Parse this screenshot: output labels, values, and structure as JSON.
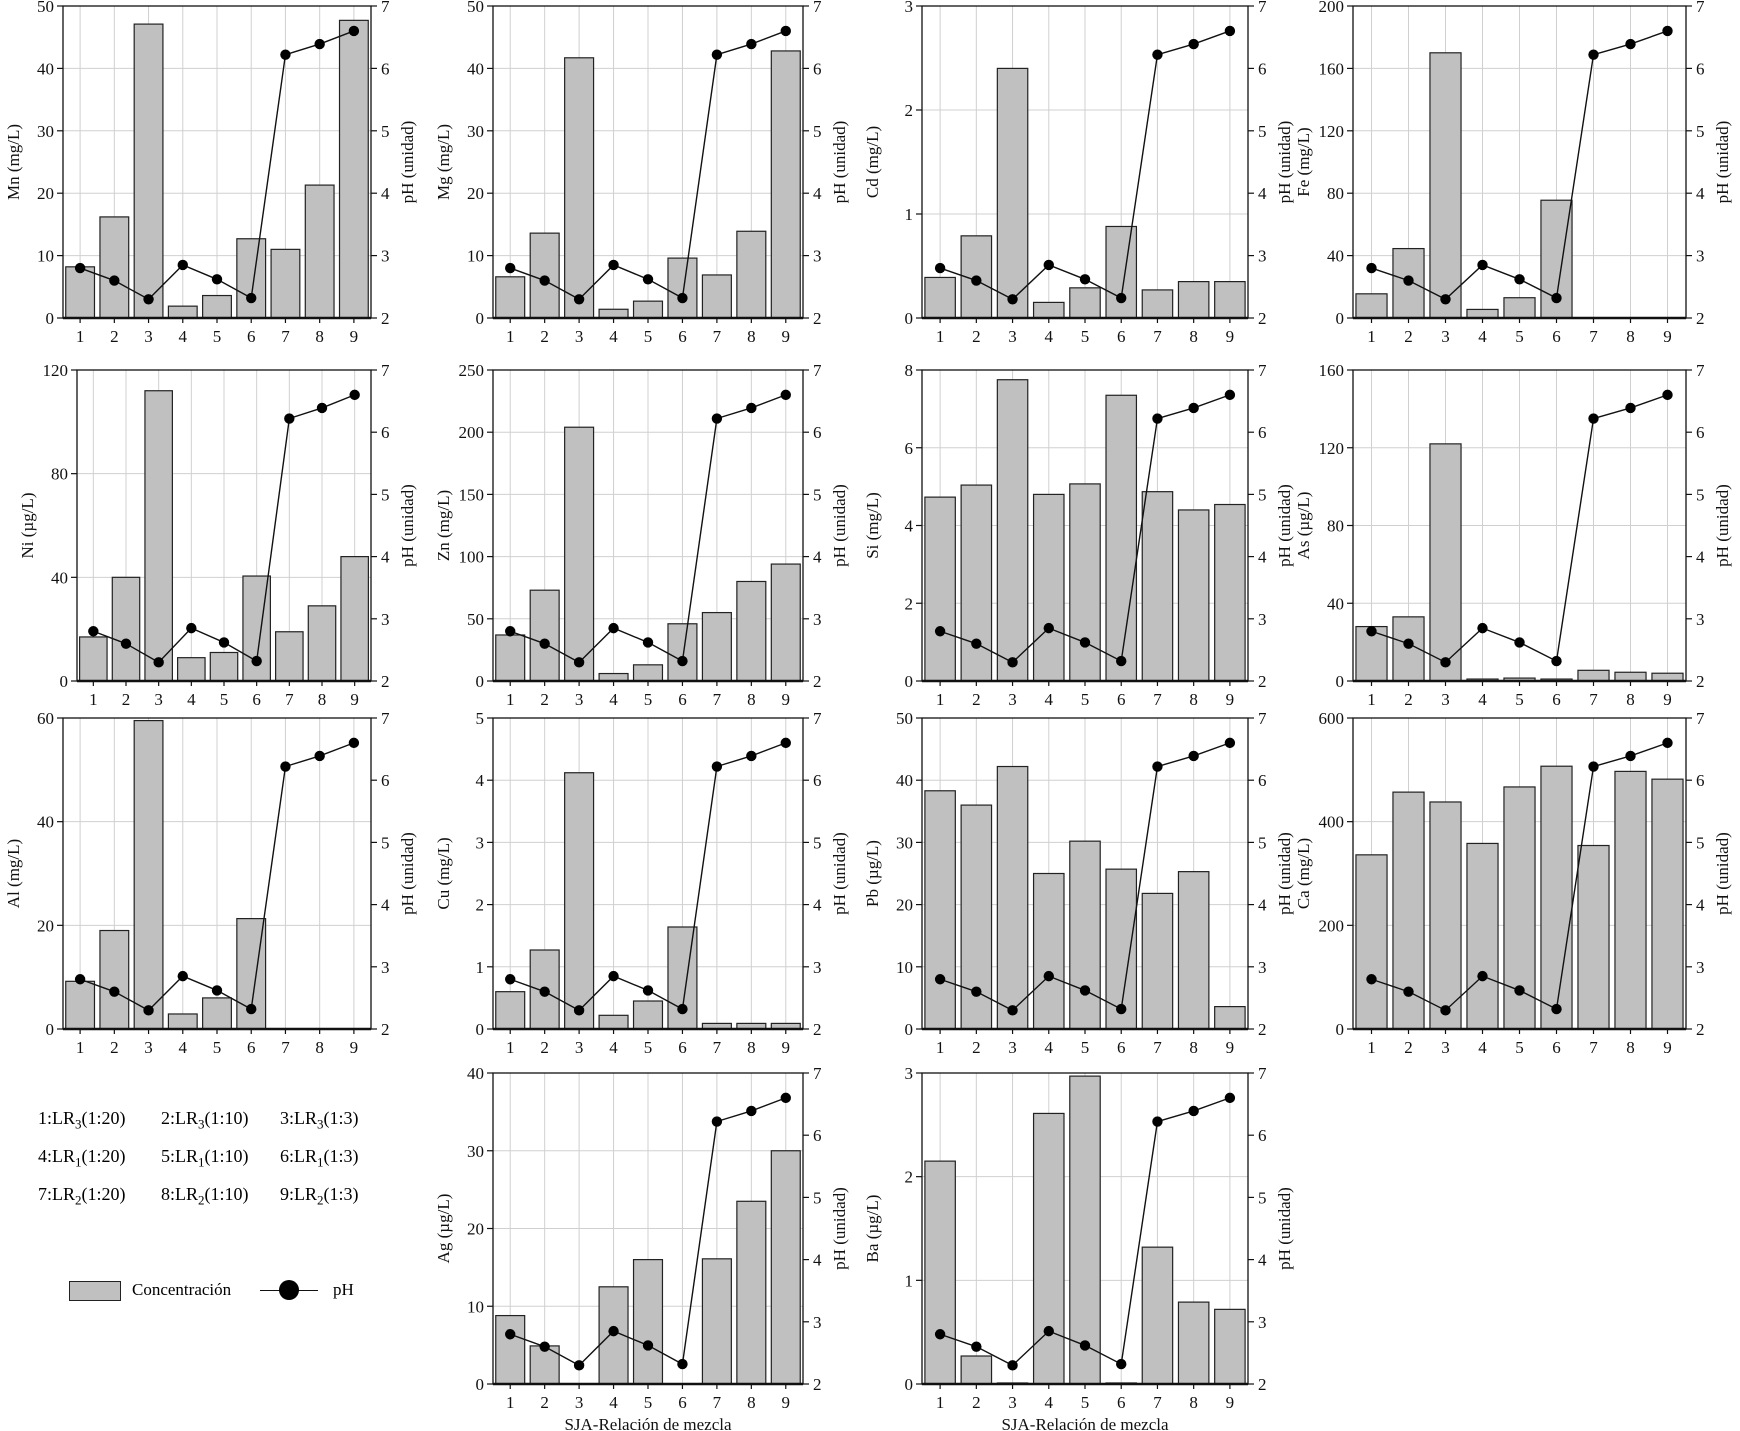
{
  "figure": {
    "xlabel": "SJA-Relación de mezcla",
    "ph_axis_label": "pH (unidad)",
    "ph_range": [
      2,
      7
    ],
    "ph_ticks": [
      2,
      3,
      4,
      5,
      6,
      7
    ]
  },
  "legend": {
    "concentration_label": "Concentración",
    "ph_label": "pH",
    "bar_color": "#c0c0c0",
    "mixtures": [
      {
        "num": "1",
        "base": "LR",
        "sub": "3",
        "ratio": "(1:20)"
      },
      {
        "num": "2",
        "base": "LR",
        "sub": "3",
        "ratio": "(1:10)"
      },
      {
        "num": "3",
        "base": "LR",
        "sub": "3",
        "ratio": "(1:3)"
      },
      {
        "num": "4",
        "base": "LR",
        "sub": "1",
        "ratio": "(1:20)"
      },
      {
        "num": "5",
        "base": "LR",
        "sub": "1",
        "ratio": "(1:10)"
      },
      {
        "num": "6",
        "base": "LR",
        "sub": "1",
        "ratio": "(1:3)"
      },
      {
        "num": "7",
        "base": "LR",
        "sub": "2",
        "ratio": "(1:20)"
      },
      {
        "num": "8",
        "base": "LR",
        "sub": "2",
        "ratio": "(1:10)"
      },
      {
        "num": "9",
        "base": "LR",
        "sub": "2",
        "ratio": "(1:3)"
      }
    ]
  },
  "chart_data": [
    {
      "type": "bar",
      "title": "Mn",
      "ylabel": "Mn (mg/L)",
      "categories": [
        "1",
        "2",
        "3",
        "4",
        "5",
        "6",
        "7",
        "8",
        "9"
      ],
      "values": [
        8.2,
        16.2,
        47.1,
        1.9,
        3.6,
        12.7,
        11.0,
        21.3,
        47.7
      ],
      "ylim": [
        0,
        50
      ],
      "yticks": [
        0,
        10,
        20,
        30,
        40,
        50
      ],
      "ph": [
        2.8,
        2.6,
        2.3,
        2.85,
        2.62,
        2.32,
        6.22,
        6.39,
        6.6
      ],
      "show_xlabel": false
    },
    {
      "type": "bar",
      "title": "Mg",
      "ylabel": "Mg (mg/L)",
      "categories": [
        "1",
        "2",
        "3",
        "4",
        "5",
        "6",
        "7",
        "8",
        "9"
      ],
      "values": [
        6.6,
        13.6,
        41.7,
        1.4,
        2.7,
        9.6,
        6.9,
        13.9,
        42.8
      ],
      "ylim": [
        0,
        50
      ],
      "yticks": [
        0,
        10,
        20,
        30,
        40,
        50
      ],
      "ph": [
        2.8,
        2.6,
        2.3,
        2.85,
        2.62,
        2.32,
        6.22,
        6.39,
        6.6
      ],
      "show_xlabel": false
    },
    {
      "type": "bar",
      "title": "Cd",
      "ylabel": "Cd (mg/L)",
      "categories": [
        "1",
        "2",
        "3",
        "4",
        "5",
        "6",
        "7",
        "8",
        "9"
      ],
      "values": [
        0.39,
        0.79,
        2.4,
        0.15,
        0.29,
        0.88,
        0.27,
        0.35,
        0.35
      ],
      "ylim": [
        0,
        3
      ],
      "yticks": [
        0,
        1,
        2,
        3
      ],
      "ph": [
        2.8,
        2.6,
        2.3,
        2.85,
        2.62,
        2.32,
        6.22,
        6.39,
        6.6
      ],
      "show_xlabel": false
    },
    {
      "type": "bar",
      "title": "Fe",
      "ylabel": "Fe (mg/L)",
      "categories": [
        "1",
        "2",
        "3",
        "4",
        "5",
        "6",
        "7",
        "8",
        "9"
      ],
      "values": [
        15.5,
        44.5,
        170,
        5.5,
        13,
        75.5,
        0,
        0,
        0
      ],
      "ylim": [
        0,
        200
      ],
      "yticks": [
        0,
        40,
        80,
        120,
        160,
        200
      ],
      "ph": [
        2.8,
        2.6,
        2.3,
        2.85,
        2.62,
        2.32,
        6.22,
        6.39,
        6.6
      ],
      "show_xlabel": false
    },
    {
      "type": "bar",
      "title": "Ni",
      "ylabel": "Ni (µg/L)",
      "categories": [
        "1",
        "2",
        "3",
        "4",
        "5",
        "6",
        "7",
        "8",
        "9"
      ],
      "values": [
        17,
        40,
        112,
        9,
        11,
        40.5,
        19,
        29,
        48
      ],
      "ylim": [
        0,
        120
      ],
      "yticks": [
        0,
        40,
        80,
        120
      ],
      "ph": [
        2.8,
        2.6,
        2.3,
        2.85,
        2.62,
        2.32,
        6.22,
        6.39,
        6.6
      ],
      "show_xlabel": false
    },
    {
      "type": "bar",
      "title": "Zn",
      "ylabel": "Zn (mg/L)",
      "categories": [
        "1",
        "2",
        "3",
        "4",
        "5",
        "6",
        "7",
        "8",
        "9"
      ],
      "values": [
        37,
        73,
        204,
        6,
        13,
        46,
        55,
        80,
        94
      ],
      "ylim": [
        0,
        250
      ],
      "yticks": [
        0,
        50,
        100,
        150,
        200,
        250
      ],
      "ph": [
        2.8,
        2.6,
        2.3,
        2.85,
        2.62,
        2.32,
        6.22,
        6.39,
        6.6
      ],
      "show_xlabel": false
    },
    {
      "type": "bar",
      "title": "Si",
      "ylabel": "Si (mg/L)",
      "categories": [
        "1",
        "2",
        "3",
        "4",
        "5",
        "6",
        "7",
        "8",
        "9"
      ],
      "values": [
        4.73,
        5.04,
        7.75,
        4.8,
        5.07,
        7.35,
        4.87,
        4.4,
        4.54
      ],
      "ylim": [
        0,
        8
      ],
      "yticks": [
        0,
        2,
        4,
        6,
        8
      ],
      "ph": [
        2.8,
        2.6,
        2.3,
        2.85,
        2.62,
        2.32,
        6.22,
        6.39,
        6.6
      ],
      "show_xlabel": false
    },
    {
      "type": "bar",
      "title": "As",
      "ylabel": "As (µg/L)",
      "categories": [
        "1",
        "2",
        "3",
        "4",
        "5",
        "6",
        "7",
        "8",
        "9"
      ],
      "values": [
        28,
        33,
        122,
        1,
        1.5,
        1,
        5.5,
        4.5,
        4
      ],
      "ylim": [
        0,
        160
      ],
      "yticks": [
        0,
        40,
        80,
        120,
        160
      ],
      "ph": [
        2.8,
        2.6,
        2.3,
        2.85,
        2.62,
        2.32,
        6.22,
        6.39,
        6.6
      ],
      "show_xlabel": false
    },
    {
      "type": "bar",
      "title": "Al",
      "ylabel": "Al (mg/L)",
      "categories": [
        "1",
        "2",
        "3",
        "4",
        "5",
        "6",
        "7",
        "8",
        "9"
      ],
      "values": [
        9.2,
        19,
        59.5,
        2.9,
        6,
        21.3,
        0,
        0,
        0
      ],
      "ylim": [
        0,
        60
      ],
      "yticks": [
        0,
        20,
        40,
        60
      ],
      "ph": [
        2.8,
        2.6,
        2.3,
        2.85,
        2.62,
        2.32,
        6.22,
        6.39,
        6.6
      ],
      "show_xlabel": false
    },
    {
      "type": "bar",
      "title": "Cu",
      "ylabel": "Cu (mg/L)",
      "categories": [
        "1",
        "2",
        "3",
        "4",
        "5",
        "6",
        "7",
        "8",
        "9"
      ],
      "values": [
        0.6,
        1.27,
        4.12,
        0.22,
        0.45,
        1.64,
        0.09,
        0.09,
        0.09
      ],
      "ylim": [
        0,
        5
      ],
      "yticks": [
        0,
        1,
        2,
        3,
        4,
        5
      ],
      "ph": [
        2.8,
        2.6,
        2.3,
        2.85,
        2.62,
        2.32,
        6.22,
        6.39,
        6.6
      ],
      "show_xlabel": false
    },
    {
      "type": "bar",
      "title": "Pb",
      "ylabel": "Pb (µg/L)",
      "categories": [
        "1",
        "2",
        "3",
        "4",
        "5",
        "6",
        "7",
        "8",
        "9"
      ],
      "values": [
        38.3,
        36,
        42.2,
        25,
        30.2,
        25.7,
        21.8,
        25.3,
        3.6
      ],
      "ylim": [
        0,
        50
      ],
      "yticks": [
        0,
        10,
        20,
        30,
        40,
        50
      ],
      "ph": [
        2.8,
        2.6,
        2.3,
        2.85,
        2.62,
        2.32,
        6.22,
        6.39,
        6.6
      ],
      "show_xlabel": false
    },
    {
      "type": "bar",
      "title": "Ca",
      "ylabel": "Ca (mg/L)",
      "categories": [
        "1",
        "2",
        "3",
        "4",
        "5",
        "6",
        "7",
        "8",
        "9"
      ],
      "values": [
        336,
        457,
        438,
        358,
        467,
        507,
        354,
        497,
        482
      ],
      "ylim": [
        0,
        600
      ],
      "yticks": [
        0,
        200,
        400,
        600
      ],
      "ph": [
        2.8,
        2.6,
        2.3,
        2.85,
        2.62,
        2.32,
        6.22,
        6.39,
        6.6
      ],
      "show_xlabel": false
    },
    {
      "type": "bar",
      "title": "Ag",
      "ylabel": "Ag (µg/L)",
      "categories": [
        "1",
        "2",
        "3",
        "4",
        "5",
        "6",
        "7",
        "8",
        "9"
      ],
      "values": [
        8.8,
        4.9,
        0,
        12.5,
        16,
        0,
        16.1,
        23.5,
        30
      ],
      "ylim": [
        0,
        40
      ],
      "yticks": [
        0,
        10,
        20,
        30,
        40
      ],
      "ph": [
        2.8,
        2.6,
        2.3,
        2.85,
        2.62,
        2.32,
        6.22,
        6.39,
        6.6
      ],
      "show_xlabel": true
    },
    {
      "type": "bar",
      "title": "Ba",
      "ylabel": "Ba (µg/L)",
      "categories": [
        "1",
        "2",
        "3",
        "4",
        "5",
        "6",
        "7",
        "8",
        "9"
      ],
      "values": [
        2.15,
        0.27,
        0.01,
        2.61,
        2.97,
        0.01,
        1.32,
        0.79,
        0.72
      ],
      "ylim": [
        0,
        3
      ],
      "yticks": [
        0,
        1,
        2,
        3
      ],
      "ph": [
        2.8,
        2.6,
        2.3,
        2.85,
        2.62,
        2.32,
        6.22,
        6.39,
        6.6
      ],
      "show_xlabel": true
    }
  ]
}
